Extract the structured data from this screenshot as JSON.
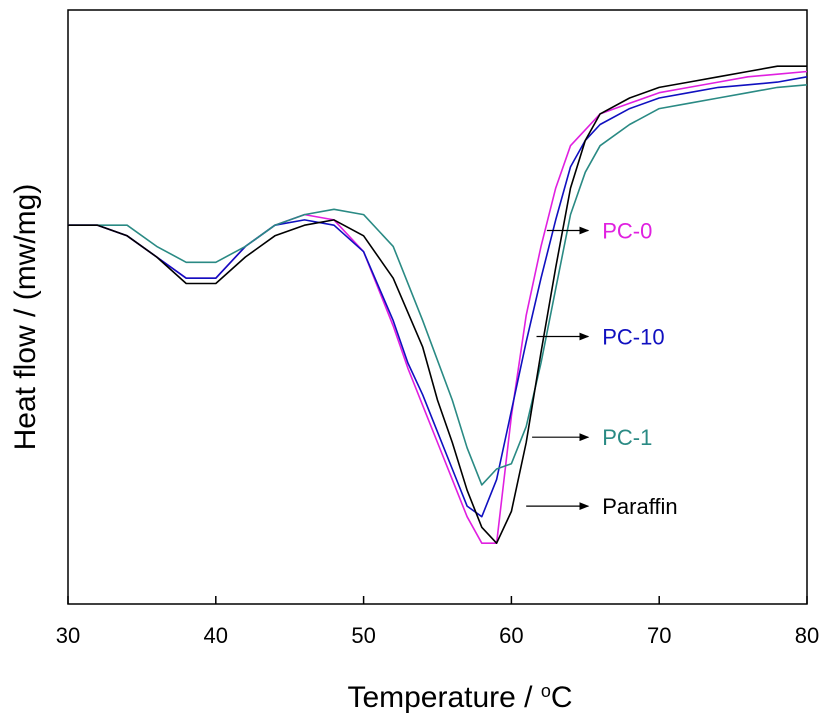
{
  "chart_data": {
    "type": "line",
    "title": "",
    "xlabel": "Temperature / ",
    "xlabel_unit": "oC",
    "ylabel": "Heat flow / (mw/mg)",
    "xlim": [
      30,
      80
    ],
    "ylim": [
      0,
      100
    ],
    "y_ticks_shown": false,
    "x_ticks": [
      "30",
      "40",
      "50",
      "60",
      "70",
      "80"
    ],
    "grid": false,
    "series": [
      {
        "name": "PC-0",
        "color": "#e020e0",
        "x": [
          30,
          32,
          34,
          36,
          38,
          40,
          42,
          44,
          46,
          48,
          50,
          52,
          53,
          54,
          55,
          56,
          57,
          58,
          59,
          60,
          61,
          62,
          63,
          64,
          65,
          66,
          68,
          70,
          72,
          74,
          76,
          78,
          80
        ],
        "y": [
          66,
          66,
          64,
          60,
          56,
          56,
          62,
          66,
          68,
          67,
          61,
          47,
          39,
          32,
          25,
          18,
          11,
          6,
          6,
          30,
          49,
          62,
          73,
          81,
          84,
          87,
          89,
          91,
          92,
          93,
          94,
          94.5,
          95
        ]
      },
      {
        "name": "PC-10",
        "color": "#1010c0",
        "x": [
          30,
          32,
          34,
          36,
          38,
          40,
          42,
          44,
          46,
          48,
          50,
          52,
          53,
          54,
          55,
          56,
          57,
          58,
          59,
          60,
          61,
          62,
          63,
          64,
          65,
          66,
          68,
          70,
          72,
          74,
          76,
          78,
          80
        ],
        "y": [
          66,
          66,
          64,
          60,
          56,
          56,
          62,
          66,
          67,
          66,
          61,
          48,
          40,
          34,
          27,
          20,
          13,
          11,
          18,
          31,
          44,
          56,
          67,
          77,
          82,
          85,
          88,
          90,
          91,
          92,
          92.5,
          93,
          94
        ]
      },
      {
        "name": "PC-1",
        "color": "#2a8a84",
        "x": [
          30,
          32,
          34,
          36,
          38,
          40,
          42,
          44,
          46,
          48,
          50,
          52,
          54,
          56,
          57,
          58,
          59,
          60,
          61,
          62,
          63,
          64,
          65,
          66,
          68,
          70,
          72,
          74,
          76,
          78,
          80
        ],
        "y": [
          66,
          66,
          66,
          62,
          59,
          59,
          62,
          66,
          68,
          69,
          68,
          62,
          48,
          33,
          24,
          17,
          20,
          21,
          28,
          40,
          54,
          68,
          76,
          81,
          85,
          88,
          89,
          90,
          91,
          92,
          92.5
        ]
      },
      {
        "name": "Paraffin",
        "color": "#000000",
        "x": [
          30,
          32,
          34,
          36,
          38,
          40,
          42,
          44,
          46,
          48,
          50,
          52,
          54,
          55,
          56,
          57,
          58,
          59,
          60,
          61,
          62,
          63,
          64,
          65,
          66,
          68,
          70,
          72,
          74,
          76,
          78,
          80
        ],
        "y": [
          66,
          66,
          64,
          60,
          55,
          55,
          60,
          64,
          66,
          67,
          64,
          56,
          43,
          33,
          25,
          16,
          9,
          6,
          12,
          25,
          42,
          58,
          73,
          82,
          87,
          90,
          92,
          93,
          94,
          95,
          96,
          96
        ]
      }
    ],
    "annotations": [
      {
        "label": "PC-0",
        "color": "#e020e0",
        "arrow_from_x": 62.4,
        "arrow_from_y": 65,
        "arrow_to_x": 65.2,
        "arrow_to_y": 65
      },
      {
        "label": "PC-10",
        "color": "#1010c0",
        "arrow_from_x": 61.7,
        "arrow_from_y": 45,
        "arrow_to_x": 65.2,
        "arrow_to_y": 45
      },
      {
        "label": "PC-1",
        "color": "#2a8a84",
        "arrow_from_x": 61.4,
        "arrow_from_y": 26,
        "arrow_to_x": 65.2,
        "arrow_to_y": 26
      },
      {
        "label": "Paraffin",
        "color": "#000000",
        "arrow_from_x": 61.0,
        "arrow_from_y": 13,
        "arrow_to_x": 65.2,
        "arrow_to_y": 13
      }
    ]
  }
}
